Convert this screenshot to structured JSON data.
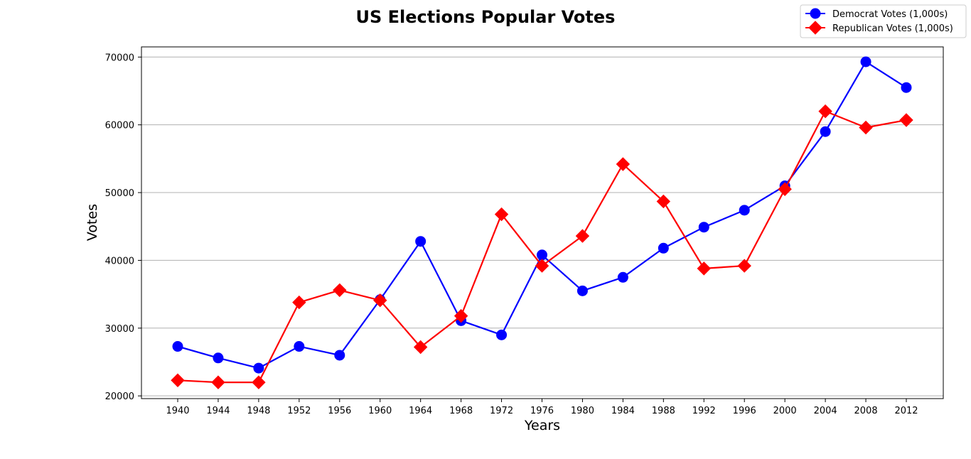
{
  "chart_data": {
    "type": "line",
    "title": "US Elections Popular Votes",
    "xlabel": "Years",
    "ylabel": "Votes",
    "x": [
      1940,
      1944,
      1948,
      1952,
      1956,
      1960,
      1964,
      1968,
      1972,
      1976,
      1980,
      1984,
      1988,
      1992,
      1996,
      2000,
      2004,
      2008,
      2012
    ],
    "xticks": [
      "1940",
      "1944",
      "1948",
      "1952",
      "1956",
      "1960",
      "1964",
      "1968",
      "1972",
      "1976",
      "1980",
      "1984",
      "1988",
      "1992",
      "1996",
      "2000",
      "2004",
      "2008",
      "2012"
    ],
    "ylim": [
      19600,
      71500
    ],
    "yticks": [
      20000,
      30000,
      40000,
      50000,
      60000,
      70000
    ],
    "ytick_labels": [
      "20000",
      "30000",
      "40000",
      "50000",
      "60000",
      "70000"
    ],
    "grid": "horizontal",
    "legend_position": "top-right",
    "series": [
      {
        "name": "Democrat Votes (1,000s)",
        "color": "#0000ff",
        "marker": "circle",
        "values": [
          27300,
          25600,
          24100,
          27300,
          26000,
          34200,
          42800,
          31100,
          29000,
          40800,
          35500,
          37500,
          41800,
          44900,
          47400,
          51000,
          59000,
          69300,
          65500
        ]
      },
      {
        "name": "Republican Votes (1,000s)",
        "color": "#ff0000",
        "marker": "diamond",
        "values": [
          22300,
          22000,
          22000,
          33800,
          35600,
          34100,
          27200,
          31800,
          46800,
          39200,
          43600,
          54200,
          48700,
          38800,
          39200,
          50500,
          62000,
          59600,
          60700
        ]
      }
    ]
  }
}
